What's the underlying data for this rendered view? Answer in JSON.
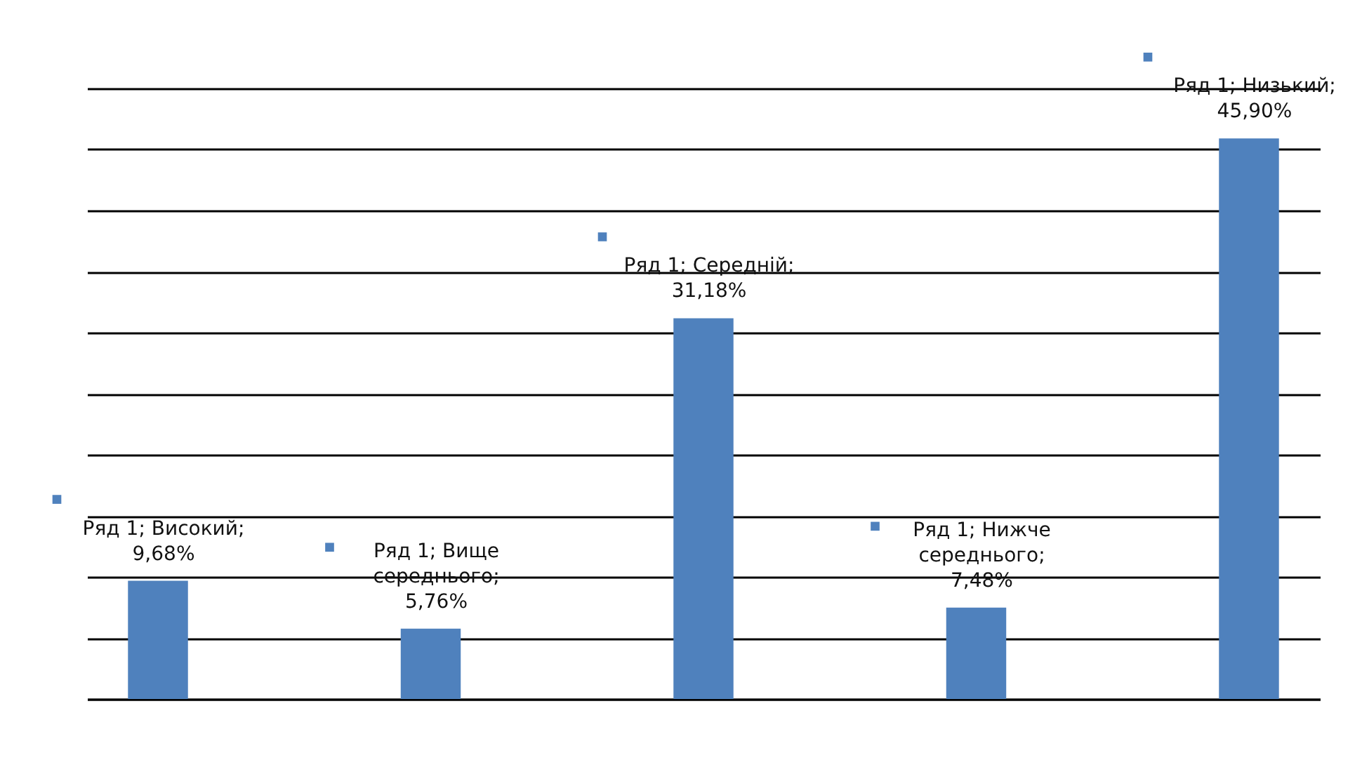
{
  "chart_data": {
    "type": "bar",
    "categories": [
      null,
      null,
      null,
      null,
      null
    ],
    "series": [
      {
        "color": "#4f81bd",
        "values": [
          9.68,
          5.76,
          31.18,
          7.48,
          45.9
        ],
        "value_labels": [
          "Ряд 1; Високий; 9,68%",
          "Ряд 1; Вище середнього; 5,76%",
          "Ряд 1; Середній; 31,18%",
          "Ряд 1; Нижче середнього; 7,48%",
          "Ряд 1; Низький; 45,90%"
        ]
      }
    ],
    "grid": "y",
    "tick_labels": false,
    "legend": false
  }
}
